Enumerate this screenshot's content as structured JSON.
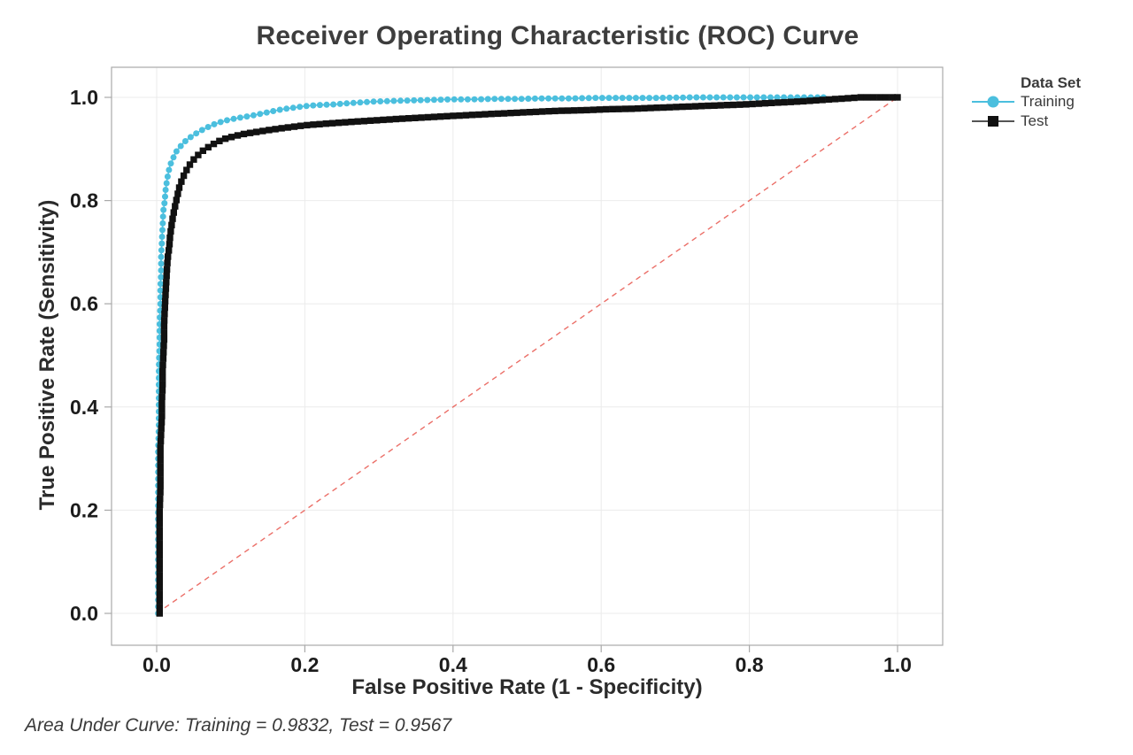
{
  "chart_data": {
    "type": "line",
    "title": "Receiver Operating Characteristic (ROC) Curve",
    "xlabel": "False Positive Rate (1 - Specificity)",
    "ylabel": "True Positive Rate (Sensitivity)",
    "xlim": [
      0,
      1
    ],
    "ylim": [
      0,
      1
    ],
    "xticks": [
      0.0,
      0.2,
      0.4,
      0.6,
      0.8,
      1.0
    ],
    "yticks": [
      0.0,
      0.2,
      0.4,
      0.6,
      0.8,
      1.0
    ],
    "grid": true,
    "legend_position": "right",
    "legend_title": "Data Set",
    "colors": {
      "grid": "#EBEBEB",
      "frame": "#A9A9A9",
      "tick": "#A9A9A9",
      "reference": "#E8564E"
    },
    "reference_line": {
      "from": [
        0,
        0
      ],
      "to": [
        1,
        1
      ],
      "style": "dashed",
      "color": "#E8564E"
    },
    "series": [
      {
        "name": "Training",
        "marker": "circle",
        "color": "#4BBFDE",
        "auc": 0.9832,
        "points": [
          [
            0.002,
            0.0
          ],
          [
            0.002,
            0.04
          ],
          [
            0.002,
            0.08
          ],
          [
            0.002,
            0.12
          ],
          [
            0.002,
            0.16
          ],
          [
            0.002,
            0.2
          ],
          [
            0.002,
            0.24
          ],
          [
            0.002,
            0.28
          ],
          [
            0.002,
            0.32
          ],
          [
            0.003,
            0.36
          ],
          [
            0.003,
            0.4
          ],
          [
            0.003,
            0.44
          ],
          [
            0.003,
            0.48
          ],
          [
            0.004,
            0.52
          ],
          [
            0.004,
            0.56
          ],
          [
            0.005,
            0.6
          ],
          [
            0.005,
            0.63
          ],
          [
            0.006,
            0.66
          ],
          [
            0.006,
            0.69
          ],
          [
            0.007,
            0.72
          ],
          [
            0.008,
            0.75
          ],
          [
            0.009,
            0.78
          ],
          [
            0.011,
            0.8
          ],
          [
            0.012,
            0.82
          ],
          [
            0.014,
            0.84
          ],
          [
            0.016,
            0.855
          ],
          [
            0.018,
            0.868
          ],
          [
            0.021,
            0.878
          ],
          [
            0.024,
            0.888
          ],
          [
            0.027,
            0.896
          ],
          [
            0.031,
            0.903
          ],
          [
            0.035,
            0.91
          ],
          [
            0.04,
            0.917
          ],
          [
            0.046,
            0.923
          ],
          [
            0.052,
            0.929
          ],
          [
            0.059,
            0.935
          ],
          [
            0.067,
            0.941
          ],
          [
            0.076,
            0.947
          ],
          [
            0.086,
            0.952
          ],
          [
            0.096,
            0.956
          ],
          [
            0.106,
            0.959
          ],
          [
            0.118,
            0.962
          ],
          [
            0.13,
            0.965
          ],
          [
            0.143,
            0.969
          ],
          [
            0.156,
            0.973
          ],
          [
            0.17,
            0.977
          ],
          [
            0.185,
            0.98
          ],
          [
            0.2,
            0.983
          ],
          [
            0.217,
            0.985
          ],
          [
            0.235,
            0.986
          ],
          [
            0.254,
            0.988
          ],
          [
            0.274,
            0.99
          ],
          [
            0.295,
            0.992
          ],
          [
            0.318,
            0.993
          ],
          [
            0.342,
            0.994
          ],
          [
            0.368,
            0.995
          ],
          [
            0.395,
            0.996
          ],
          [
            0.424,
            0.996
          ],
          [
            0.455,
            0.997
          ],
          [
            0.488,
            0.997
          ],
          [
            0.522,
            0.998
          ],
          [
            0.558,
            0.998
          ],
          [
            0.596,
            0.999
          ],
          [
            0.636,
            0.999
          ],
          [
            0.678,
            0.999
          ],
          [
            0.722,
            1.0
          ],
          [
            0.768,
            1.0
          ],
          [
            0.816,
            1.0
          ],
          [
            0.862,
            1.0
          ],
          [
            0.9,
            1.0
          ]
        ]
      },
      {
        "name": "Test",
        "marker": "square",
        "color": "#111111",
        "line_color": "#555555",
        "auc": 0.9567,
        "points": [
          [
            0.004,
            0.0
          ],
          [
            0.004,
            0.04
          ],
          [
            0.004,
            0.08
          ],
          [
            0.004,
            0.12
          ],
          [
            0.004,
            0.16
          ],
          [
            0.004,
            0.2
          ],
          [
            0.005,
            0.24
          ],
          [
            0.005,
            0.28
          ],
          [
            0.005,
            0.32
          ],
          [
            0.006,
            0.35
          ],
          [
            0.007,
            0.38
          ],
          [
            0.007,
            0.41
          ],
          [
            0.008,
            0.44
          ],
          [
            0.008,
            0.47
          ],
          [
            0.009,
            0.5
          ],
          [
            0.01,
            0.53
          ],
          [
            0.01,
            0.56
          ],
          [
            0.011,
            0.59
          ],
          [
            0.012,
            0.62
          ],
          [
            0.013,
            0.645
          ],
          [
            0.014,
            0.67
          ],
          [
            0.015,
            0.69
          ],
          [
            0.017,
            0.71
          ],
          [
            0.018,
            0.73
          ],
          [
            0.02,
            0.75
          ],
          [
            0.022,
            0.77
          ],
          [
            0.025,
            0.79
          ],
          [
            0.028,
            0.81
          ],
          [
            0.031,
            0.828
          ],
          [
            0.035,
            0.843
          ],
          [
            0.039,
            0.856
          ],
          [
            0.044,
            0.868
          ],
          [
            0.049,
            0.878
          ],
          [
            0.055,
            0.887
          ],
          [
            0.061,
            0.895
          ],
          [
            0.068,
            0.902
          ],
          [
            0.076,
            0.909
          ],
          [
            0.084,
            0.915
          ],
          [
            0.093,
            0.92
          ],
          [
            0.103,
            0.924
          ],
          [
            0.114,
            0.928
          ],
          [
            0.126,
            0.931
          ],
          [
            0.139,
            0.934
          ],
          [
            0.153,
            0.937
          ],
          [
            0.168,
            0.94
          ],
          [
            0.184,
            0.943
          ],
          [
            0.201,
            0.946
          ],
          [
            0.219,
            0.948
          ],
          [
            0.238,
            0.95
          ],
          [
            0.258,
            0.952
          ],
          [
            0.279,
            0.954
          ],
          [
            0.301,
            0.956
          ],
          [
            0.324,
            0.958
          ],
          [
            0.348,
            0.96
          ],
          [
            0.373,
            0.962
          ],
          [
            0.399,
            0.964
          ],
          [
            0.426,
            0.966
          ],
          [
            0.454,
            0.968
          ],
          [
            0.483,
            0.97
          ],
          [
            0.513,
            0.972
          ],
          [
            0.544,
            0.974
          ],
          [
            0.576,
            0.975
          ],
          [
            0.609,
            0.977
          ],
          [
            0.643,
            0.978
          ],
          [
            0.678,
            0.98
          ],
          [
            0.714,
            0.982
          ],
          [
            0.751,
            0.984
          ],
          [
            0.789,
            0.986
          ],
          [
            0.828,
            0.989
          ],
          [
            0.868,
            0.992
          ],
          [
            0.909,
            0.996
          ],
          [
            0.951,
            1.0
          ],
          [
            1.0,
            1.0
          ]
        ]
      }
    ],
    "annotation": "Area Under Curve: Training = 0.9832, Test = 0.9567"
  }
}
